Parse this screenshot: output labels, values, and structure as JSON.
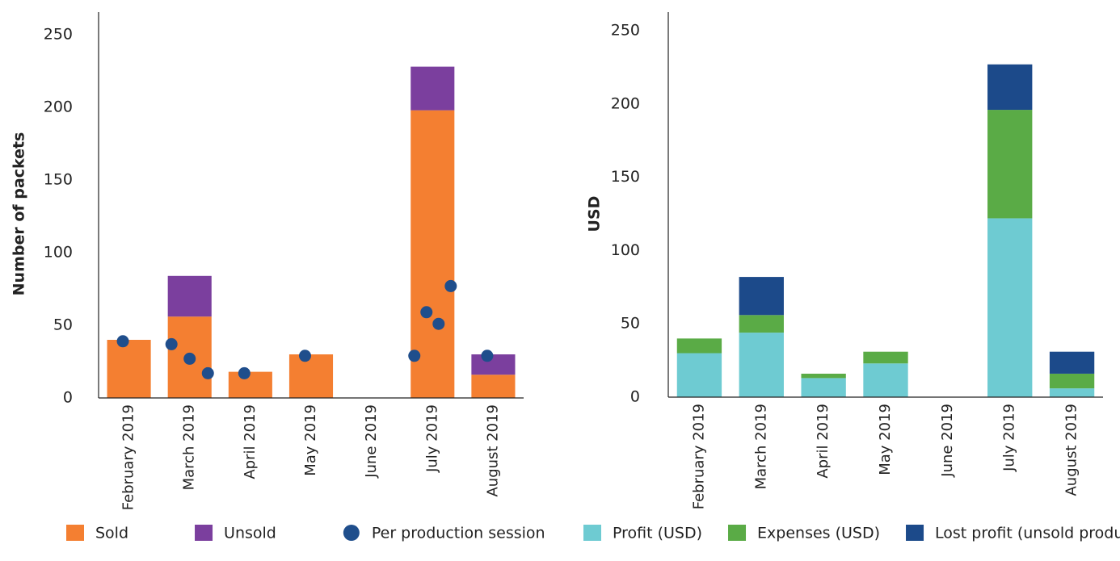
{
  "chart_data": [
    {
      "type": "bar",
      "stacked": true,
      "ylabel": "Number of packets",
      "categories": [
        "February 2019",
        "March 2019",
        "April 2019",
        "May 2019",
        "June 2019",
        "July 2019",
        "August 2019"
      ],
      "series": [
        {
          "name": "Sold",
          "color": "#f47f31",
          "values": [
            40,
            56,
            18,
            30,
            0,
            198,
            16
          ]
        },
        {
          "name": "Unsold",
          "color": "#7b3f9e",
          "values": [
            0,
            28,
            0,
            0,
            0,
            30,
            14
          ]
        }
      ],
      "points": {
        "name": "Per production session",
        "color": "#1f4e8c",
        "categories": [
          "February 2019",
          "March 2019",
          "March 2019",
          "March 2019",
          "April 2019",
          "May 2019",
          "July 2019",
          "July 2019",
          "July 2019",
          "July 2019",
          "August 2019"
        ],
        "values": [
          39,
          37,
          27,
          17,
          17,
          29,
          29,
          59,
          51,
          77,
          29
        ]
      },
      "ylim": [
        0,
        250
      ],
      "yticks": [
        0,
        50,
        100,
        150,
        200,
        250
      ]
    },
    {
      "type": "bar",
      "stacked": true,
      "ylabel": "USD",
      "categories": [
        "February 2019",
        "March 2019",
        "April 2019",
        "May 2019",
        "June 2019",
        "July 2019",
        "August 2019"
      ],
      "series": [
        {
          "name": "Profit (USD)",
          "color": "#6ecbd2",
          "values": [
            30,
            44,
            13,
            23,
            0,
            122,
            6
          ]
        },
        {
          "name": "Expenses (USD)",
          "color": "#5aab46",
          "values": [
            10,
            12,
            3,
            8,
            0,
            74,
            10
          ]
        },
        {
          "name": "Lost profit (unsold product)",
          "color": "#1c4a8a",
          "values": [
            0,
            26,
            0,
            0,
            0,
            31,
            15
          ]
        }
      ],
      "ylim": [
        0,
        250
      ],
      "yticks": [
        0,
        50,
        100,
        150,
        200,
        250
      ]
    }
  ]
}
